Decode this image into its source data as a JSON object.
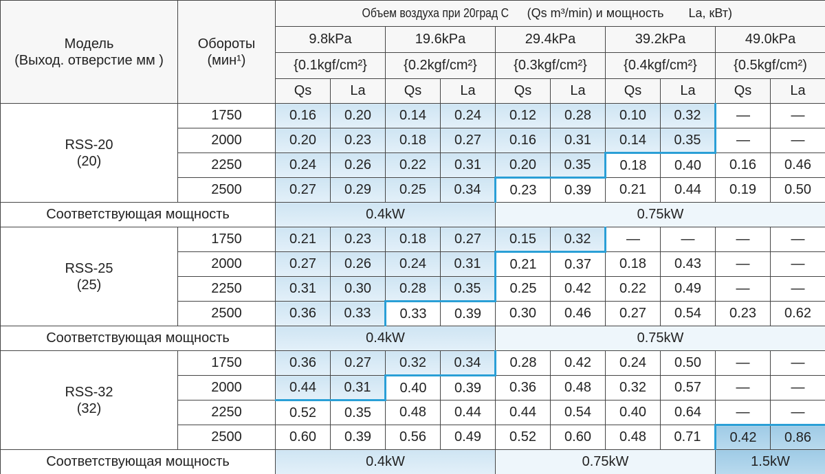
{
  "header": {
    "model_title": "Модель",
    "model_subtitle": "(Выход. отверстие мм )",
    "rpm_title": "Обороты",
    "rpm_unit": "(мин¹)",
    "title_parts": [
      "Объем воздуха при 20град С",
      "(Qs m³/min) и мощность",
      "La, кВт)"
    ],
    "pressures": [
      {
        "kpa": "9.8kPa",
        "kgf": "{0.1kgf/cm²}"
      },
      {
        "kpa": "19.6kPa",
        "kgf": "{0.2kgf/cm²}"
      },
      {
        "kpa": "29.4kPa",
        "kgf": "{0.3kgf/cm²}"
      },
      {
        "kpa": "39.2kPa",
        "kgf": "{0.4kgf/cm²}"
      },
      {
        "kpa": "49.0kPa",
        "kgf": "{0.5kgf/cm²)"
      }
    ],
    "columns": [
      "Qs",
      "La"
    ]
  },
  "groups": [
    {
      "model": "RSS-20",
      "outlet": "(20)",
      "rows": [
        {
          "rpm": "1750",
          "cells": [
            "0.16",
            "0.20",
            "0.14",
            "0.24",
            "0.12",
            "0.28",
            "0.10",
            "0.32",
            "—",
            "—"
          ]
        },
        {
          "rpm": "2000",
          "cells": [
            "0.20",
            "0.23",
            "0.18",
            "0.27",
            "0.16",
            "0.31",
            "0.14",
            "0.35",
            "—",
            "—"
          ]
        },
        {
          "rpm": "2250",
          "cells": [
            "0.24",
            "0.26",
            "0.22",
            "0.31",
            "0.20",
            "0.35",
            "0.18",
            "0.40",
            "0.16",
            "0.46"
          ]
        },
        {
          "rpm": "2500",
          "cells": [
            "0.27",
            "0.29",
            "0.25",
            "0.34",
            "0.23",
            "0.39",
            "0.21",
            "0.44",
            "0.19",
            "0.50"
          ]
        }
      ],
      "power_label": "Соответствующая мощность",
      "power": [
        "0.4kW",
        "0.75kW"
      ]
    },
    {
      "model": "RSS-25",
      "outlet": "(25)",
      "rows": [
        {
          "rpm": "1750",
          "cells": [
            "0.21",
            "0.23",
            "0.18",
            "0.27",
            "0.15",
            "0.32",
            "—",
            "—",
            "—",
            "—"
          ]
        },
        {
          "rpm": "2000",
          "cells": [
            "0.27",
            "0.26",
            "0.24",
            "0.31",
            "0.21",
            "0.37",
            "0.18",
            "0.43",
            "—",
            "—"
          ]
        },
        {
          "rpm": "2250",
          "cells": [
            "0.31",
            "0.30",
            "0.28",
            "0.35",
            "0.25",
            "0.42",
            "0.22",
            "0.49",
            "—",
            "—"
          ]
        },
        {
          "rpm": "2500",
          "cells": [
            "0.36",
            "0.33",
            "0.33",
            "0.39",
            "0.30",
            "0.46",
            "0.27",
            "0.54",
            "0.23",
            "0.62"
          ]
        }
      ],
      "power_label": "Соответствующая мощность",
      "power": [
        "0.4kW",
        "0.75kW"
      ]
    },
    {
      "model": "RSS-32",
      "outlet": "(32)",
      "rows": [
        {
          "rpm": "1750",
          "cells": [
            "0.36",
            "0.27",
            "0.32",
            "0.34",
            "0.28",
            "0.42",
            "0.24",
            "0.50",
            "—",
            "—"
          ]
        },
        {
          "rpm": "2000",
          "cells": [
            "0.44",
            "0.31",
            "0.40",
            "0.39",
            "0.36",
            "0.48",
            "0.32",
            "0.57",
            "—",
            "—"
          ]
        },
        {
          "rpm": "2250",
          "cells": [
            "0.52",
            "0.35",
            "0.48",
            "0.44",
            "0.44",
            "0.54",
            "0.40",
            "0.64",
            "—",
            "—"
          ]
        },
        {
          "rpm": "2500",
          "cells": [
            "0.60",
            "0.39",
            "0.56",
            "0.49",
            "0.52",
            "0.60",
            "0.48",
            "0.71",
            "0.42",
            "0.86"
          ]
        }
      ],
      "power_label": "Соответствующая мощность",
      "power": [
        "0.4kW",
        "0.75kW",
        "1.5kW"
      ]
    }
  ]
}
